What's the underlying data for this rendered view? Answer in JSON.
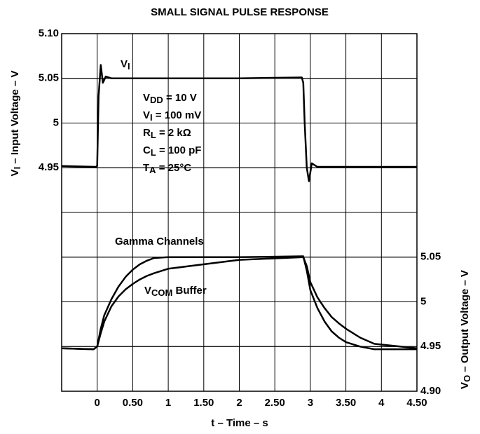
{
  "chart_data": {
    "type": "line",
    "title": "SMALL SIGNAL PULSE RESPONSE",
    "xlabel": "t – Time –  s",
    "ylabel": [
      "V",
      "I",
      " – Input Voltage – V"
    ],
    "y2label": [
      "V",
      "O",
      " – Output Voltage – V"
    ],
    "xlim": [
      -0.5,
      4.5
    ],
    "xticks": [
      0,
      {
        "value": 0.5,
        "label": "0.50"
      },
      1,
      {
        "value": 1.5,
        "label": "1.50"
      },
      2,
      {
        "value": 2.5,
        "label": "2.50"
      },
      3,
      {
        "value": 3.5,
        "label": "3.50"
      },
      4,
      {
        "value": 4.5,
        "label": "4.50"
      }
    ],
    "ylim": [
      4.7,
      5.1
    ],
    "yticks": [
      4.95,
      5,
      5.05,
      {
        "value": 5.1,
        "label": "5.10"
      }
    ],
    "y2lim": [
      4.9,
      5.3
    ],
    "y2ticks": [
      {
        "value": 4.9,
        "label": "4.90"
      },
      4.95,
      5,
      5.05
    ],
    "grid": true,
    "annotations": [
      [
        "V",
        "DD",
        " = 10 V"
      ],
      [
        "V",
        "I",
        " = 100 mV"
      ],
      [
        "R",
        "L",
        " = 2 kΩ"
      ],
      [
        "C",
        "L",
        " = 100 pF"
      ],
      [
        "T",
        "A",
        " = 25°C"
      ]
    ],
    "series": [
      {
        "name": [
          "V",
          "I"
        ],
        "color": "#000000",
        "axis": "y",
        "x": [
          -0.5,
          -0.02,
          0,
          0.02,
          0.05,
          0.08,
          0.12,
          0.2,
          1,
          2,
          2.88,
          2.9,
          2.92,
          2.95,
          2.98,
          3.02,
          3.1,
          4.5
        ],
        "values": [
          4.952,
          4.951,
          4.952,
          5.03,
          5.065,
          5.045,
          5.052,
          5.05,
          5.05,
          5.05,
          5.051,
          5.045,
          5.0,
          4.95,
          4.935,
          4.955,
          4.951,
          4.951
        ]
      },
      {
        "name": [
          "Gamma Channels"
        ],
        "color": "#000000",
        "axis": "y2",
        "x": [
          -0.5,
          -0.05,
          0,
          0.05,
          0.1,
          0.2,
          0.3,
          0.4,
          0.5,
          0.6,
          0.7,
          0.8,
          1.0,
          2.0,
          2.9,
          2.95,
          3.0,
          3.1,
          3.2,
          3.3,
          3.4,
          3.5,
          3.7,
          3.9,
          4.5
        ],
        "values": [
          4.948,
          4.947,
          4.95,
          4.97,
          4.985,
          5.003,
          5.017,
          5.028,
          5.036,
          5.042,
          5.046,
          5.049,
          5.05,
          5.05,
          5.051,
          5.035,
          5.013,
          4.993,
          4.978,
          4.967,
          4.96,
          4.955,
          4.95,
          4.947,
          4.947
        ]
      },
      {
        "name": [
          "V",
          "COM",
          " Buffer"
        ],
        "color": "#000000",
        "axis": "y2",
        "x": [
          -0.5,
          -0.05,
          0,
          0.05,
          0.1,
          0.2,
          0.3,
          0.4,
          0.5,
          0.6,
          0.7,
          0.8,
          1.0,
          2.0,
          2.9,
          2.95,
          3.0,
          3.1,
          3.2,
          3.3,
          3.4,
          3.5,
          3.7,
          3.9,
          4.5
        ],
        "values": [
          4.948,
          4.947,
          4.95,
          4.965,
          4.978,
          4.995,
          5.006,
          5.014,
          5.02,
          5.025,
          5.029,
          5.032,
          5.037,
          5.047,
          5.05,
          5.04,
          5.022,
          5.005,
          4.993,
          4.983,
          4.976,
          4.97,
          4.96,
          4.953,
          4.948
        ]
      }
    ]
  }
}
